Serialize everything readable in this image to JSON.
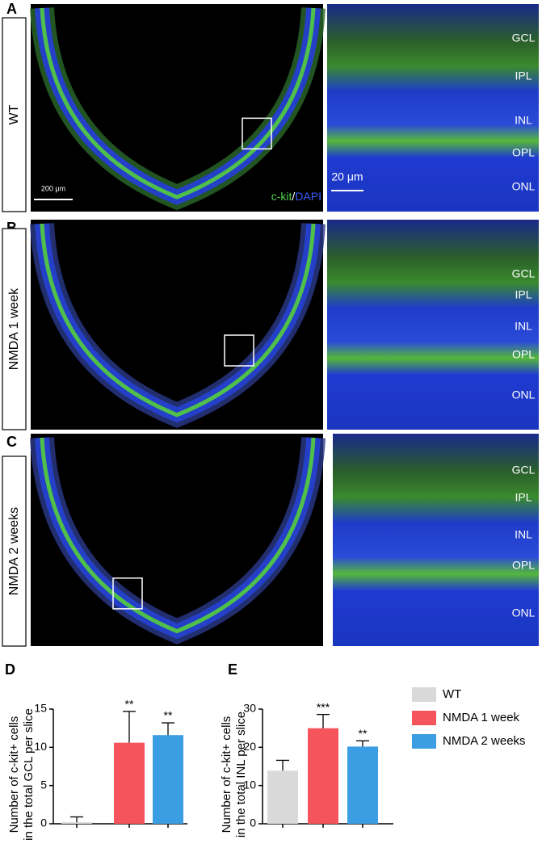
{
  "panels": [
    {
      "letter": "A",
      "label": "WT",
      "scale_left": "200 μm",
      "scale_right": "20 μm",
      "stain": [
        "c-kit",
        "/",
        "DAPI"
      ],
      "layers": [
        "GCL",
        "IPL",
        "INL",
        "OPL",
        "ONL"
      ]
    },
    {
      "letter": "B",
      "label": "NMDA 1 week",
      "layers": [
        "GCL",
        "IPL",
        "INL",
        "OPL",
        "ONL"
      ]
    },
    {
      "letter": "C",
      "label": "NMDA 2 weeks",
      "layers": [
        "GCL",
        "IPL",
        "INL",
        "OPL",
        "ONL"
      ]
    }
  ],
  "legend": [
    {
      "name": "WT",
      "color": "#d9d9d9"
    },
    {
      "name": "NMDA 1 week",
      "color": "#f5545c"
    },
    {
      "name": "NMDA 2 weeks",
      "color": "#3b9ee3"
    }
  ],
  "chart_data": [
    {
      "type": "bar",
      "letter": "D",
      "y_label": [
        "Number of c-kit+ cells",
        "in the total GCL per slice"
      ],
      "values": [
        0.2,
        10.6,
        11.6
      ],
      "errors": [
        0.7,
        4.1,
        1.6
      ],
      "significance": [
        null,
        "**",
        "**"
      ],
      "ylim": [
        0,
        15
      ],
      "yticks": [
        0,
        5,
        10,
        15
      ]
    },
    {
      "type": "bar",
      "letter": "E",
      "y_label": [
        "Number of c-kit+ cells",
        "in the total INL per slice"
      ],
      "values": [
        13.9,
        25,
        20.2
      ],
      "errors": [
        2.7,
        3.6,
        1.5
      ],
      "significance": [
        null,
        "***",
        "**"
      ],
      "ylim": [
        0,
        30
      ],
      "yticks": [
        0,
        10,
        20,
        30
      ]
    }
  ]
}
